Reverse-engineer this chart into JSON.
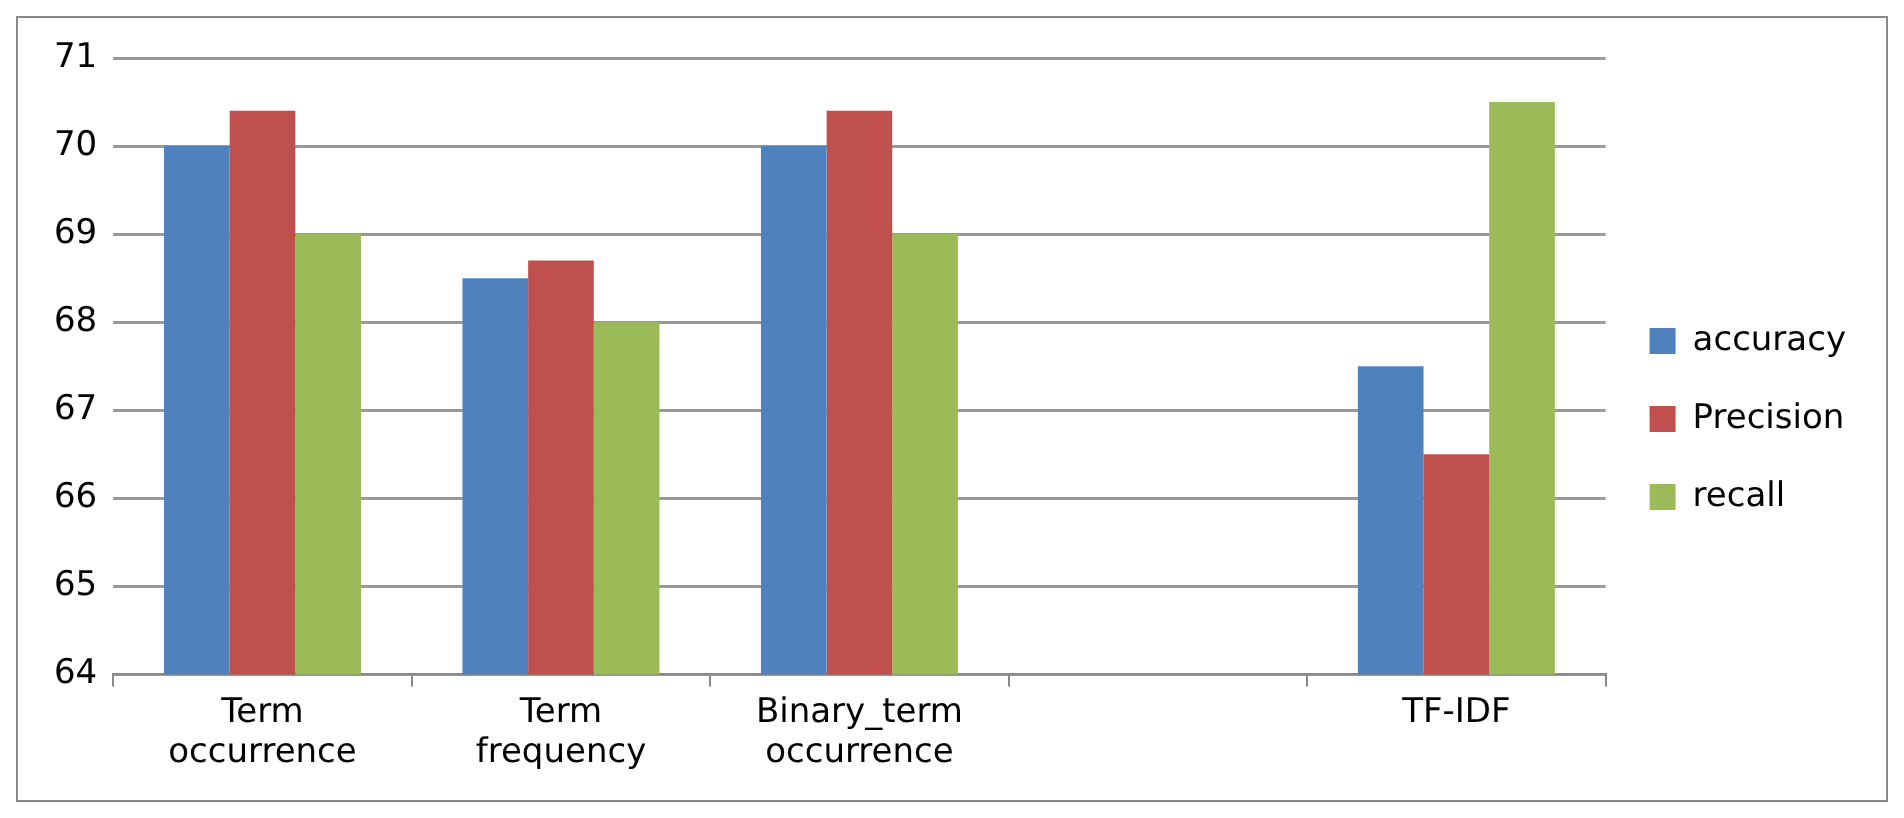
{
  "chart_data": {
    "type": "bar",
    "categories": [
      "Term occurrence",
      "Term frequency",
      "Binary_term occurrence",
      null,
      "TF-IDF"
    ],
    "series": [
      {
        "name": "accuracy",
        "color": "#4f81bd",
        "values": [
          70,
          68.5,
          70,
          null,
          67.5
        ]
      },
      {
        "name": "Precision",
        "color": "#c0504d",
        "values": [
          70.4,
          68.7,
          70.4,
          null,
          66.5
        ]
      },
      {
        "name": "recall",
        "color": "#9bbb59",
        "values": [
          69,
          68,
          69,
          null,
          70.5
        ]
      }
    ],
    "ylim": [
      64,
      71
    ],
    "yticks": [
      64,
      65,
      66,
      67,
      68,
      69,
      70,
      71
    ],
    "grid": "y",
    "legend": "right"
  }
}
